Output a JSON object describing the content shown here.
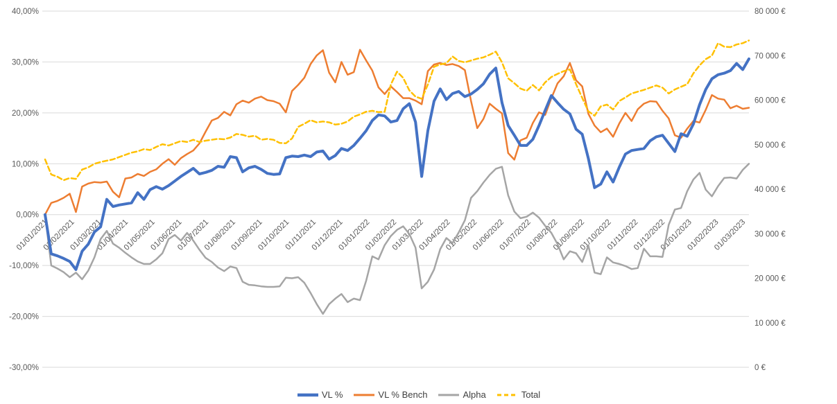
{
  "chart_data": {
    "type": "line",
    "title": "",
    "xlabel": "",
    "ylabel_left": "",
    "ylabel_right": "",
    "grid": "horizontal",
    "legend_position": "bottom",
    "x_tick_labels": [
      "01/01/2021",
      "01/02/2021",
      "01/03/2021",
      "01/04/2021",
      "01/05/2021",
      "01/06/2021",
      "01/07/2021",
      "01/08/2021",
      "01/09/2021",
      "01/10/2021",
      "01/11/2021",
      "01/12/2021",
      "01/01/2022",
      "01/02/2022",
      "01/03/2022",
      "01/04/2022",
      "01/05/2022",
      "01/06/2022",
      "01/07/2022",
      "01/08/2022",
      "01/09/2022",
      "01/10/2022",
      "01/11/2022",
      "01/12/2022",
      "01/01/2023",
      "01/02/2023",
      "01/03/2023"
    ],
    "left_axis": {
      "min": -30,
      "max": 40,
      "unit": "percent",
      "tick_values": [
        40,
        30,
        20,
        10,
        0,
        -10,
        -20,
        -30
      ],
      "tick_labels": [
        "40,00%",
        "30,00%",
        "20,00%",
        "10,00%",
        "0,00%",
        "-10,00%",
        "-20,00%",
        "-30,00%"
      ]
    },
    "right_axis": {
      "min": 0,
      "max": 80000,
      "unit": "euro",
      "tick_values": [
        80000,
        70000,
        60000,
        50000,
        40000,
        30000,
        20000,
        10000,
        0
      ],
      "tick_labels": [
        "80 000 €",
        "70 000 €",
        "60 000 €",
        "50 000 €",
        "40 000 €",
        "30 000 €",
        "20 000 €",
        "10 000 €",
        "0 €"
      ]
    },
    "series": [
      {
        "name": "VL %",
        "axis": "left",
        "color": "#4472C4",
        "width": 4,
        "dash": null,
        "values": [
          0.0,
          -7.7,
          -8.1,
          -8.6,
          -9.2,
          -10.8,
          -7.2,
          -5.8,
          -3.4,
          -2.4,
          3.0,
          1.6,
          1.9,
          2.1,
          2.3,
          4.3,
          3.0,
          4.9,
          5.5,
          5.0,
          5.7,
          6.6,
          7.5,
          8.3,
          9.1,
          8.0,
          8.3,
          8.7,
          9.5,
          9.3,
          11.4,
          11.2,
          8.4,
          9.2,
          9.5,
          8.9,
          8.1,
          7.9,
          8.0,
          11.2,
          11.5,
          11.4,
          11.7,
          11.4,
          12.3,
          12.5,
          10.9,
          11.6,
          13.0,
          12.6,
          13.6,
          15.0,
          16.5,
          18.5,
          19.6,
          19.4,
          18.2,
          18.5,
          20.8,
          21.8,
          18.2,
          7.5,
          16.5,
          22.3,
          24.7,
          22.6,
          23.8,
          24.2,
          23.2,
          23.7,
          24.6,
          25.7,
          27.6,
          28.8,
          22.0,
          17.5,
          15.6,
          13.6,
          13.6,
          14.8,
          17.5,
          20.5,
          23.4,
          22.0,
          20.7,
          19.8,
          16.8,
          15.8,
          11.0,
          5.3,
          6.0,
          8.4,
          6.4,
          9.3,
          11.9,
          12.6,
          12.8,
          13.0,
          14.5,
          15.3,
          15.6,
          14.0,
          12.4,
          15.9,
          15.4,
          17.8,
          21.6,
          24.6,
          26.7,
          27.5,
          27.8,
          28.3,
          29.7,
          28.5,
          30.6
        ]
      },
      {
        "name": "VL % Bench",
        "axis": "left",
        "color": "#ED7D31",
        "width": 2.5,
        "dash": null,
        "values": [
          0.0,
          2.3,
          2.7,
          3.3,
          4.1,
          0.5,
          5.5,
          6.1,
          6.4,
          6.3,
          6.5,
          4.5,
          3.4,
          7.1,
          7.3,
          8.0,
          7.6,
          8.4,
          8.9,
          10.0,
          10.9,
          9.8,
          11.1,
          11.9,
          12.6,
          14.0,
          16.3,
          18.5,
          19.0,
          20.2,
          19.5,
          21.7,
          22.4,
          22.0,
          22.8,
          23.2,
          22.5,
          22.3,
          21.8,
          20.1,
          24.3,
          25.5,
          26.9,
          29.6,
          31.3,
          32.3,
          27.9,
          26.0,
          30.0,
          27.5,
          28.0,
          32.4,
          30.3,
          28.3,
          25.0,
          23.7,
          25.2,
          24.1,
          22.9,
          22.9,
          22.4,
          21.7,
          28.2,
          29.5,
          29.8,
          29.4,
          29.6,
          29.2,
          28.4,
          22.3,
          17.0,
          18.8,
          21.8,
          20.8,
          19.9,
          12.1,
          10.8,
          14.6,
          15.1,
          18.0,
          20.1,
          19.6,
          22.9,
          25.8,
          27.2,
          29.8,
          26.4,
          25.2,
          19.8,
          17.5,
          16.2,
          16.9,
          15.3,
          17.9,
          20.0,
          18.4,
          20.7,
          21.8,
          22.3,
          22.2,
          20.4,
          18.9,
          15.6,
          15.1,
          16.9,
          18.4,
          18.1,
          20.6,
          23.5,
          22.8,
          22.6,
          20.9,
          21.4,
          20.8,
          21.0
        ]
      },
      {
        "name": "Alpha",
        "axis": "left",
        "color": "#A5A5A5",
        "width": 2.5,
        "dash": null,
        "values": [
          0.0,
          -10.0,
          -10.6,
          -11.3,
          -12.3,
          -11.4,
          -12.7,
          -11.0,
          -8.4,
          -4.8,
          -3.2,
          -5.7,
          -6.5,
          -7.5,
          -8.4,
          -9.2,
          -9.7,
          -9.7,
          -8.8,
          -7.6,
          -4.8,
          -4.0,
          -5.1,
          -3.6,
          -5.1,
          -6.9,
          -8.5,
          -9.3,
          -10.4,
          -11.1,
          -10.2,
          -10.5,
          -13.2,
          -13.8,
          -13.9,
          -14.1,
          -14.2,
          -14.2,
          -14.1,
          -12.4,
          -12.5,
          -12.3,
          -13.4,
          -15.4,
          -17.6,
          -19.5,
          -17.6,
          -16.5,
          -15.6,
          -17.2,
          -16.5,
          -16.8,
          -13.0,
          -8.2,
          -8.8,
          -6.0,
          -4.2,
          -3.0,
          -2.3,
          -3.8,
          -6.5,
          -14.5,
          -13.2,
          -10.8,
          -6.8,
          -4.6,
          -5.6,
          -3.5,
          -1.1,
          3.3,
          4.6,
          6.3,
          7.8,
          9.0,
          9.4,
          3.8,
          0.6,
          -0.7,
          -0.4,
          0.4,
          -0.6,
          -2.2,
          -3.6,
          -5.8,
          -8.8,
          -7.2,
          -7.6,
          -9.3,
          -6.1,
          -11.4,
          -11.7,
          -8.4,
          -9.4,
          -9.7,
          -10.1,
          -10.7,
          -10.5,
          -6.7,
          -8.2,
          -8.2,
          -8.3,
          -2.0,
          1.0,
          1.3,
          4.6,
          6.9,
          8.2,
          4.9,
          3.6,
          5.6,
          7.2,
          7.3,
          7.1,
          8.8,
          10.0
        ]
      },
      {
        "name": "Total",
        "axis": "right",
        "color": "#FFC000",
        "width": 2.5,
        "dash": "7 4",
        "values": [
          46700,
          43300,
          42800,
          42000,
          42500,
          42300,
          44400,
          44900,
          45700,
          46100,
          46400,
          46700,
          47200,
          47700,
          48200,
          48500,
          49000,
          48800,
          49500,
          50100,
          49800,
          50300,
          50800,
          50600,
          51100,
          50600,
          50900,
          51100,
          51300,
          51200,
          51600,
          52400,
          52200,
          51800,
          52000,
          51100,
          51300,
          51100,
          50400,
          50300,
          51400,
          54000,
          54700,
          55500,
          55000,
          55200,
          55000,
          54500,
          54700,
          55200,
          56300,
          56800,
          57400,
          57600,
          57300,
          57400,
          63500,
          66400,
          65000,
          62200,
          60800,
          60300,
          63500,
          67500,
          68000,
          68300,
          69800,
          68800,
          68500,
          68900,
          69300,
          69600,
          70200,
          70900,
          68500,
          64900,
          63800,
          62600,
          62100,
          63400,
          62200,
          64000,
          65200,
          65900,
          66500,
          66900,
          63600,
          60500,
          57500,
          56500,
          58600,
          59000,
          57900,
          59800,
          60600,
          61500,
          61900,
          62300,
          62800,
          63300,
          62800,
          61500,
          62400,
          63000,
          63600,
          66000,
          67800,
          69200,
          70000,
          72800,
          72000,
          71900,
          72500,
          72800,
          73400
        ]
      }
    ]
  },
  "colors": {
    "background": "#FFFFFF",
    "grid": "#D9D9D9",
    "axis_text": "#595959",
    "legend_text": "#404040"
  }
}
